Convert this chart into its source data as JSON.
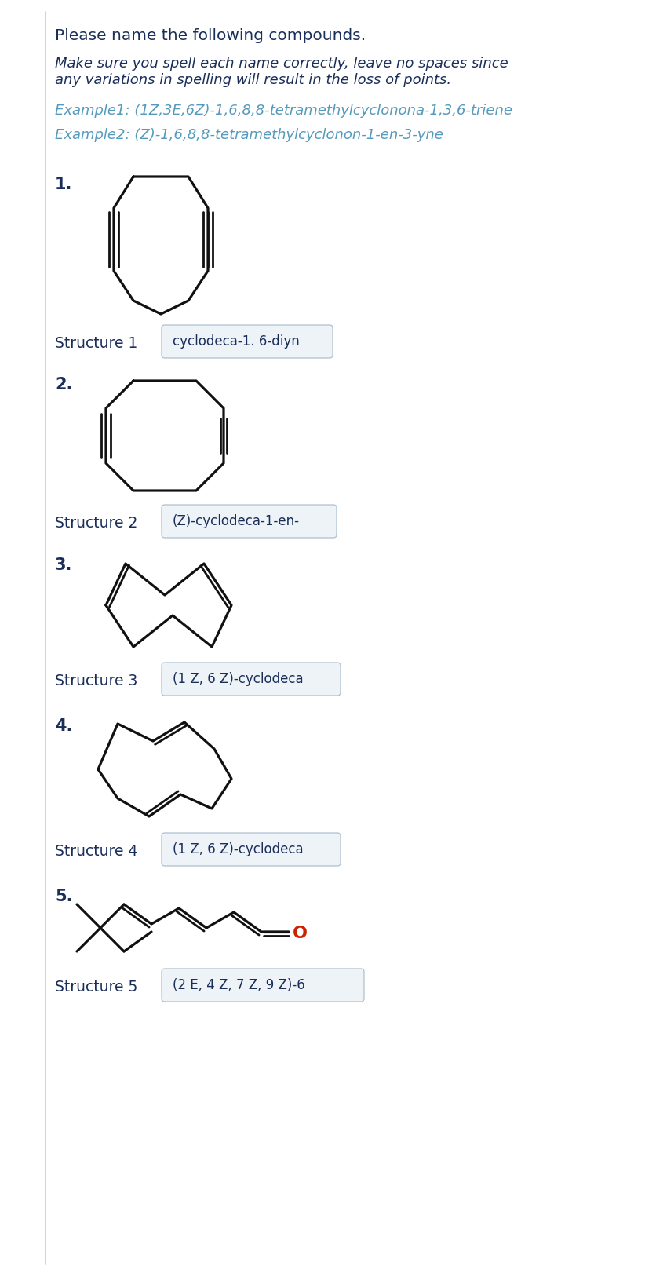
{
  "title": "Please name the following compounds.",
  "instruction_line1": "Make sure you spell each name correctly, leave no spaces since",
  "instruction_line2": "any variations in spelling will result in the loss of points.",
  "example1": "Example1: (1Z,3E,6Z)-1,6,8,8-tetramethylcyclonona-1,3,6-triene",
  "example2": "Example2: (Z)-1,6,8,8-tetramethylcyclonon-1-en-3-yne",
  "answer_texts": [
    "cyclodeca-1. 6-diyn",
    "(Z)-cyclodeca-1-en-",
    "(1 Z, 6 Z)-cyclodeca",
    "(1 Z, 6 Z)-cyclodeca",
    "(2 E, 4 Z, 7 Z, 9 Z)-6"
  ],
  "bg_color": "#ffffff",
  "text_color": "#1a2e5a",
  "example_color": "#5599bb",
  "line_color": "#111111",
  "box_bg": "#eef3f8",
  "box_border": "#aec0d0",
  "separator_color": "#cccccc"
}
